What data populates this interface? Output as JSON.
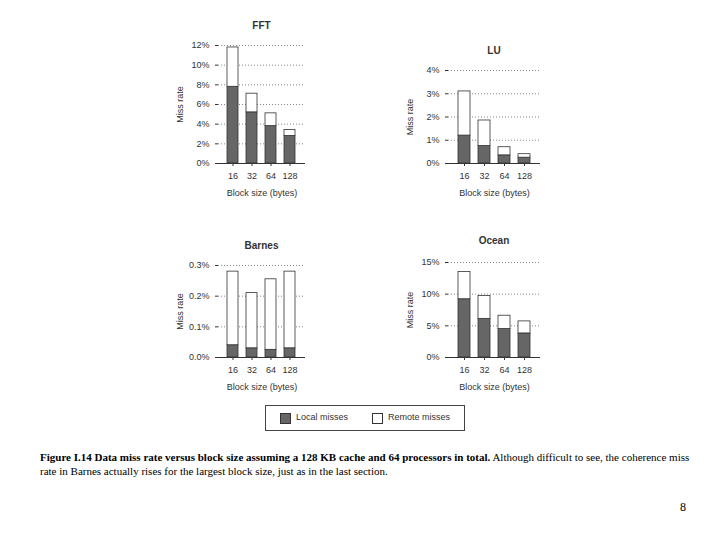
{
  "chart_data": [
    {
      "type": "bar",
      "title": "FFT",
      "stacked": true,
      "grid": true,
      "x_label": "Block size (bytes)",
      "y_label": "Miss rate",
      "categories": [
        "16",
        "32",
        "64",
        "128"
      ],
      "ylim": [
        0,
        12
      ],
      "yticks": [
        {
          "value": 0,
          "label": "0%"
        },
        {
          "value": 2,
          "label": "2%"
        },
        {
          "value": 4,
          "label": "4%"
        },
        {
          "value": 6,
          "label": "6%"
        },
        {
          "value": 8,
          "label": "8%"
        },
        {
          "value": 10,
          "label": "10%"
        },
        {
          "value": 12,
          "label": "12%"
        }
      ],
      "series": [
        {
          "name": "Local misses",
          "color": "#666666",
          "values": [
            7.8,
            5.2,
            3.8,
            2.8
          ]
        },
        {
          "name": "Remote misses",
          "color": "#ffffff",
          "values": [
            4.0,
            1.9,
            1.3,
            0.6
          ]
        }
      ]
    },
    {
      "type": "bar",
      "title": "LU",
      "stacked": true,
      "grid": true,
      "x_label": "Block size (bytes)",
      "y_label": "Miss rate",
      "categories": [
        "16",
        "32",
        "64",
        "128"
      ],
      "ylim": [
        0,
        4
      ],
      "yticks": [
        {
          "value": 0,
          "label": "0%"
        },
        {
          "value": 1,
          "label": "1%"
        },
        {
          "value": 2,
          "label": "2%"
        },
        {
          "value": 3,
          "label": "3%"
        },
        {
          "value": 4,
          "label": "4%"
        }
      ],
      "series": [
        {
          "name": "Local misses",
          "color": "#666666",
          "values": [
            1.2,
            0.75,
            0.35,
            0.25
          ]
        },
        {
          "name": "Remote misses",
          "color": "#ffffff",
          "values": [
            1.9,
            1.1,
            0.35,
            0.15
          ]
        }
      ]
    },
    {
      "type": "bar",
      "title": "Barnes",
      "stacked": true,
      "grid": true,
      "x_label": "Block size (bytes)",
      "y_label": "Miss rate",
      "categories": [
        "16",
        "32",
        "64",
        "128"
      ],
      "ylim": [
        0,
        0.3
      ],
      "yticks": [
        {
          "value": 0,
          "label": "0.0%"
        },
        {
          "value": 0.1,
          "label": "0.1%"
        },
        {
          "value": 0.2,
          "label": "0.2%"
        },
        {
          "value": 0.3,
          "label": "0.3%"
        }
      ],
      "series": [
        {
          "name": "Local misses",
          "color": "#666666",
          "values": [
            0.04,
            0.03,
            0.025,
            0.03
          ]
        },
        {
          "name": "Remote misses",
          "color": "#ffffff",
          "values": [
            0.24,
            0.18,
            0.23,
            0.25
          ]
        }
      ]
    },
    {
      "type": "bar",
      "title": "Ocean",
      "stacked": true,
      "grid": true,
      "x_label": "Block size (bytes)",
      "y_label": "Miss rate",
      "categories": [
        "16",
        "32",
        "64",
        "128"
      ],
      "ylim": [
        0,
        15
      ],
      "yticks": [
        {
          "value": 0,
          "label": "0%"
        },
        {
          "value": 5,
          "label": "5%"
        },
        {
          "value": 10,
          "label": "10%"
        },
        {
          "value": 15,
          "label": "15%"
        }
      ],
      "series": [
        {
          "name": "Local misses",
          "color": "#666666",
          "values": [
            9.2,
            6.1,
            4.5,
            3.8
          ]
        },
        {
          "name": "Remote misses",
          "color": "#ffffff",
          "values": [
            4.3,
            3.6,
            2.1,
            1.9
          ]
        }
      ]
    }
  ],
  "caption": {
    "bold": "Figure I.14 Data miss rate versus block size assuming a 128 KB cache and 64 processors in total.",
    "text": " Although difficult to see, the coherence miss rate in Barnes actually rises for the largest block size, just as in the last section."
  },
  "page_number": "8"
}
